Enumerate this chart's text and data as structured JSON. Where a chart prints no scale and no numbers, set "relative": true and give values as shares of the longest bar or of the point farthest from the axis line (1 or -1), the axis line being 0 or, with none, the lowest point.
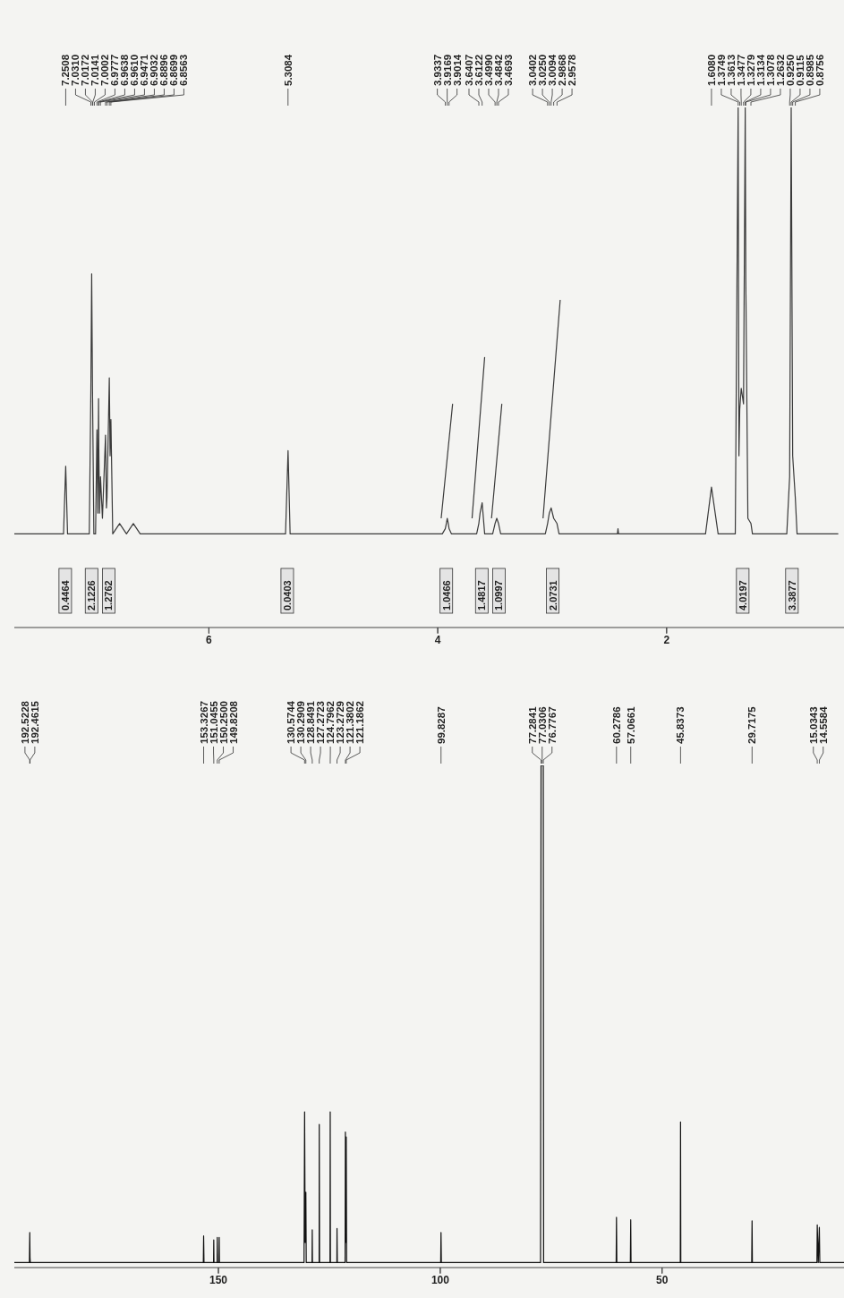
{
  "chart_data": [
    {
      "type": "line",
      "relative": true,
      "xlim": [
        7.7,
        0.45
      ],
      "xticks": [
        6,
        4,
        2
      ],
      "series": [
        {
          "color": "#3a3a3a",
          "x": [
            7.7,
            7.27,
            7.251,
            7.235,
            7.045,
            7.031,
            7.024,
            7.017,
            7.005,
            6.99,
            6.978,
            6.97,
            6.964,
            6.961,
            6.955,
            6.947,
            6.93,
            6.903,
            6.895,
            6.89,
            6.87,
            6.863,
            6.856,
            6.84,
            6.78,
            6.72,
            6.66,
            6.6,
            6.55,
            5.33,
            5.308,
            5.29,
            3.96,
            3.934,
            3.925,
            3.917,
            3.908,
            3.901,
            3.88,
            3.66,
            3.641,
            3.63,
            3.612,
            3.59,
            3.52,
            3.499,
            3.484,
            3.469,
            3.45,
            3.06,
            3.04,
            3.025,
            3.009,
            2.987,
            2.958,
            2.94,
            2.43,
            2.425,
            2.42,
            2.1,
            2.05,
            2.0,
            1.66,
            1.608,
            1.55,
            1.4,
            1.375,
            1.368,
            1.361,
            1.348,
            1.328,
            1.313,
            1.308,
            1.29,
            1.263,
            1.25,
            0.95,
            0.925,
            0.9115,
            0.8985,
            0.8756,
            0.86,
            0.5
          ],
          "values": [
            0.18,
            0.18,
            0.31,
            0.18,
            0.18,
            0.46,
            0.68,
            0.46,
            0.18,
            0.18,
            0.38,
            0.22,
            0.44,
            0.33,
            0.22,
            0.29,
            0.21,
            0.37,
            0.23,
            0.25,
            0.48,
            0.33,
            0.4,
            0.18,
            0.2,
            0.18,
            0.2,
            0.18,
            0.18,
            0.18,
            0.34,
            0.18,
            0.18,
            0.19,
            0.2,
            0.21,
            0.2,
            0.19,
            0.18,
            0.18,
            0.2,
            0.22,
            0.24,
            0.18,
            0.18,
            0.2,
            0.21,
            0.2,
            0.18,
            0.18,
            0.2,
            0.22,
            0.23,
            0.21,
            0.2,
            0.18,
            0.18,
            0.19,
            0.18,
            0.18,
            0.18,
            0.18,
            0.18,
            0.27,
            0.18,
            0.18,
            1,
            0.33,
            0.42,
            0.46,
            0.43,
            1,
            0.67,
            0.21,
            0.2,
            0.18,
            0.18,
            0.29,
            1,
            0.33,
            0.25,
            0.18,
            0.18
          ]
        },
        {
          "color": "#3a3a3a",
          "x": [
            3.97,
            3.87,
            3.8,
            3.7,
            3.59,
            3.56,
            3.53,
            3.44,
            3.2,
            3.08,
            2.93
          ],
          "values": [
            0.21,
            0.43,
            null,
            0.21,
            0.52,
            null,
            0.21,
            0.43,
            null,
            0.21,
            0.63
          ]
        }
      ],
      "annotations": [
        {
          "text": "7.2508",
          "x": 7.2508
        },
        {
          "text": "7.0310",
          "x": 7.031
        },
        {
          "text": "7.0172",
          "x": 7.0172
        },
        {
          "text": "7.0141",
          "x": 7.0141
        },
        {
          "text": "7.0002",
          "x": 7.0002
        },
        {
          "text": "6.9777",
          "x": 6.9777
        },
        {
          "text": "6.9638",
          "x": 6.9638
        },
        {
          "text": "6.9610",
          "x": 6.961
        },
        {
          "text": "6.9471",
          "x": 6.9471
        },
        {
          "text": "6.9032",
          "x": 6.9032
        },
        {
          "text": "6.8896",
          "x": 6.8896
        },
        {
          "text": "6.8699",
          "x": 6.8699
        },
        {
          "text": "6.8563",
          "x": 6.8563
        },
        {
          "text": "5.3084",
          "x": 5.3084
        },
        {
          "text": "3.9337",
          "x": 3.9337
        },
        {
          "text": "3.9169",
          "x": 3.9169
        },
        {
          "text": "3.9014",
          "x": 3.9014
        },
        {
          "text": "3.6407",
          "x": 3.6407
        },
        {
          "text": "3.6122",
          "x": 3.6122
        },
        {
          "text": "3.4990",
          "x": 3.499
        },
        {
          "text": "3.4842",
          "x": 3.4842
        },
        {
          "text": "3.4693",
          "x": 3.4693
        },
        {
          "text": "3.0402",
          "x": 3.0402
        },
        {
          "text": "3.0250",
          "x": 3.025
        },
        {
          "text": "3.0094",
          "x": 3.0094
        },
        {
          "text": "2.9868",
          "x": 2.9868
        },
        {
          "text": "2.9578",
          "x": 2.9578
        },
        {
          "text": "1.6080",
          "x": 1.608
        },
        {
          "text": "1.3749",
          "x": 1.3749
        },
        {
          "text": "1.3613",
          "x": 1.3613
        },
        {
          "text": "1.3477",
          "x": 1.3477
        },
        {
          "text": "1.3279",
          "x": 1.3279
        },
        {
          "text": "1.3134",
          "x": 1.3134
        },
        {
          "text": "1.3078",
          "x": 1.3078
        },
        {
          "text": "1.2632",
          "x": 1.2632
        },
        {
          "text": "0.9250",
          "x": 0.925
        },
        {
          "text": "0.9115",
          "x": 0.9115
        },
        {
          "text": "0.8985",
          "x": 0.8985
        },
        {
          "text": "0.8756",
          "x": 0.8756
        }
      ],
      "bands": [
        {
          "axis": "x",
          "from": 7.31,
          "to": 7.2,
          "label": "0.4464"
        },
        {
          "axis": "x",
          "from": 7.08,
          "to": 6.97,
          "label": "2.1226"
        },
        {
          "axis": "x",
          "from": 6.93,
          "to": 6.82,
          "label": "1.2762"
        },
        {
          "axis": "x",
          "from": 5.37,
          "to": 5.26,
          "label": "0.0403"
        },
        {
          "axis": "x",
          "from": 3.98,
          "to": 3.87,
          "label": "1.0466"
        },
        {
          "axis": "x",
          "from": 3.67,
          "to": 3.56,
          "label": "1.4817"
        },
        {
          "axis": "x",
          "from": 3.52,
          "to": 3.41,
          "label": "1.0997"
        },
        {
          "axis": "x",
          "from": 3.05,
          "to": 2.94,
          "label": "2.0731"
        },
        {
          "axis": "x",
          "from": 1.39,
          "to": 1.28,
          "label": "4.0197"
        },
        {
          "axis": "x",
          "from": 0.96,
          "to": 0.85,
          "label": "3.3877"
        }
      ]
    },
    {
      "type": "line",
      "relative": true,
      "xlim": [
        196,
        9
      ],
      "xticks": [
        150,
        100,
        50
      ],
      "series": [
        {
          "color": "#111111",
          "x": [
            196,
            192.6,
            192.52,
            192.46,
            192.4,
            153.4,
            153.33,
            153.25,
            151.1,
            151.05,
            151.0,
            150.3,
            150.25,
            150.2,
            149.87,
            149.82,
            149.77,
            130.7,
            130.57,
            130.45,
            130.29,
            130.2,
            128.9,
            128.85,
            128.8,
            127.3,
            127.27,
            127.2,
            124.85,
            124.8,
            124.75,
            123.3,
            123.27,
            123.2,
            121.45,
            121.38,
            121.25,
            121.19,
            121.1,
            99.9,
            99.83,
            99.75,
            77.4,
            77.28,
            77.03,
            76.78,
            76.7,
            60.35,
            60.28,
            60.2,
            57.15,
            57.07,
            57.0,
            45.9,
            45.84,
            45.78,
            29.8,
            29.72,
            29.65,
            15.1,
            15.03,
            14.8,
            14.56,
            14.45,
            9
          ],
          "values": [
            0.01,
            0.01,
            0.07,
            0.02,
            0.01,
            0.01,
            0.063,
            0.01,
            0.01,
            0.055,
            0.01,
            0.01,
            0.06,
            0.01,
            0.01,
            0.06,
            0.01,
            0.01,
            0.31,
            0.05,
            0.15,
            0.01,
            0.01,
            0.075,
            0.01,
            0.01,
            0.285,
            0.01,
            0.01,
            0.31,
            0.01,
            0.01,
            0.078,
            0.01,
            0.01,
            0.27,
            0.05,
            0.26,
            0.01,
            0.01,
            0.07,
            0.01,
            0.01,
            1,
            1,
            1,
            0.01,
            0.01,
            0.1,
            0.01,
            0.01,
            0.095,
            0.01,
            0.01,
            0.29,
            0.01,
            0.01,
            0.093,
            0.01,
            0.01,
            0.085,
            0.01,
            0.08,
            0.01,
            0.01
          ]
        }
      ],
      "annotations": [
        {
          "text": "192.5228",
          "x": 192.5228
        },
        {
          "text": "192.4615",
          "x": 192.4615
        },
        {
          "text": "153.3267",
          "x": 153.3267
        },
        {
          "text": "151.0455",
          "x": 151.0455
        },
        {
          "text": "150.2500",
          "x": 150.25
        },
        {
          "text": "149.8208",
          "x": 149.8208
        },
        {
          "text": "130.5744",
          "x": 130.5744
        },
        {
          "text": "130.2909",
          "x": 130.2909
        },
        {
          "text": "128.8491",
          "x": 128.8491
        },
        {
          "text": "127.2723",
          "x": 127.2723
        },
        {
          "text": "124.7962",
          "x": 124.7962
        },
        {
          "text": "123.2729",
          "x": 123.2729
        },
        {
          "text": "121.3802",
          "x": 121.3802
        },
        {
          "text": "121.1862",
          "x": 121.1862
        },
        {
          "text": "99.8287",
          "x": 99.8287
        },
        {
          "text": "77.2841",
          "x": 77.2841
        },
        {
          "text": "77.0306",
          "x": 77.0306
        },
        {
          "text": "76.7767",
          "x": 76.7767
        },
        {
          "text": "60.2786",
          "x": 60.2786
        },
        {
          "text": "57.0661",
          "x": 57.0661
        },
        {
          "text": "45.8373",
          "x": 45.8373
        },
        {
          "text": "29.7175",
          "x": 29.7175
        },
        {
          "text": "15.0343",
          "x": 15.0343
        },
        {
          "text": "14.5584",
          "x": 14.5584
        }
      ]
    }
  ]
}
